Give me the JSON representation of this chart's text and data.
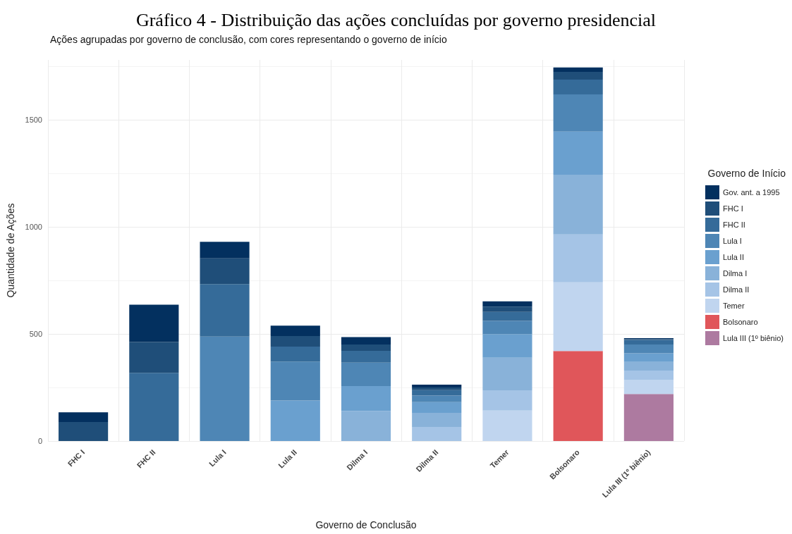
{
  "chart_data": {
    "type": "bar",
    "title": "Gráfico 4 - Distribuição das ações concluídas por governo presidencial",
    "subtitle": "Ações agrupadas por governo de conclusão, com cores representando o governo de início",
    "xlabel": "Governo de Conclusão",
    "ylabel": "Quantidade de Ações",
    "legend_title": "Governo de Início",
    "stacked": true,
    "grid": true,
    "legend": "right",
    "categories": [
      "FHC I",
      "FHC II",
      "Lula I",
      "Lula II",
      "Dilma I",
      "Dilma II",
      "Temer",
      "Bolsonaro",
      "Lula III (1º biênio)"
    ],
    "ylim": [
      0,
      1780
    ],
    "yticks": [
      0,
      500,
      1000,
      1500
    ],
    "series": [
      {
        "name": "Lula III (1º biênio)",
        "color": "#ad7aa0",
        "values": [
          null,
          null,
          null,
          null,
          null,
          null,
          null,
          null,
          220
        ]
      },
      {
        "name": "Bolsonaro",
        "color": "#e0565a",
        "values": [
          null,
          null,
          null,
          null,
          null,
          null,
          null,
          420,
          null
        ]
      },
      {
        "name": "Temer",
        "color": "#c0d5ef",
        "values": [
          null,
          null,
          null,
          null,
          null,
          null,
          142,
          321,
          66
        ]
      },
      {
        "name": "Dilma II",
        "color": "#a5c4e6",
        "values": [
          null,
          null,
          null,
          null,
          null,
          66,
          95,
          224,
          43
        ]
      },
      {
        "name": "Dilma I",
        "color": "#89b2d9",
        "values": [
          null,
          null,
          null,
          null,
          140,
          66,
          152,
          279,
          40
        ]
      },
      {
        "name": "Lula II",
        "color": "#6aa0cf",
        "values": [
          null,
          null,
          null,
          189,
          117,
          50,
          110,
          201,
          41
        ]
      },
      {
        "name": "Lula I",
        "color": "#4e86b5",
        "values": [
          null,
          null,
          488,
          182,
          109,
          30,
          62,
          174,
          41
        ]
      },
      {
        "name": "FHC II",
        "color": "#356b99",
        "values": [
          null,
          318,
          245,
          70,
          55,
          26,
          42,
          69,
          21
        ]
      },
      {
        "name": "FHC I",
        "color": "#1f4e79",
        "values": [
          89,
          144,
          120,
          49,
          30,
          12,
          25,
          36,
          4
        ]
      },
      {
        "name": "Gov. ant. a 1995",
        "color": "#03305f",
        "values": [
          45,
          175,
          77,
          49,
          34,
          13,
          24,
          21,
          4
        ]
      }
    ]
  }
}
